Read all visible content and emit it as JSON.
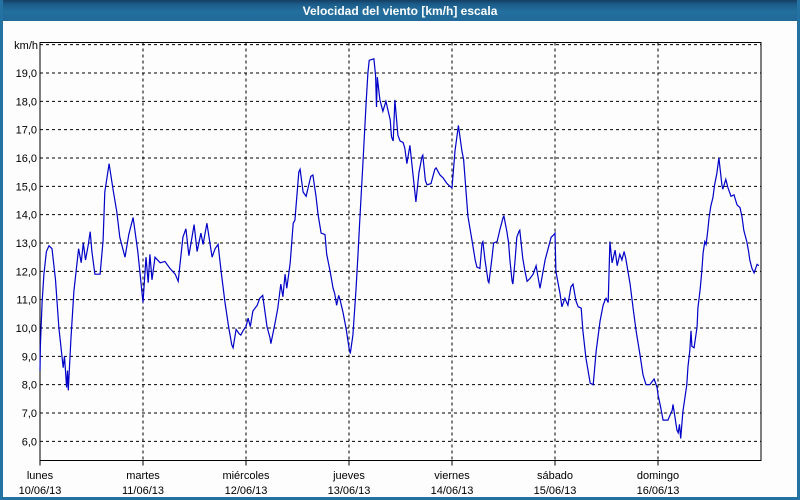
{
  "window": {
    "title": "Velocidad del viento [km/h] escala"
  },
  "colors": {
    "titlebar": "#236f9e",
    "titlebar_top": "#143f61",
    "window_border": "#2472a2",
    "window_bg": "#fcfdfc",
    "plot_bg": "#ffffff",
    "grid": "#000000",
    "axis": "#000000",
    "line": "#0000c8",
    "title_text": "#ffffff",
    "label_text": "#000000"
  },
  "axes": {
    "y_unit_label": "km/h",
    "y_ticks": [
      "19,0",
      "18,0",
      "17,0",
      "16,0",
      "15,0",
      "14,0",
      "13,0",
      "12,0",
      "11,0",
      "10,0",
      "9,0",
      "8,0",
      "7,0",
      "6,0"
    ],
    "y_tick_values": [
      19,
      18,
      17,
      16,
      15,
      14,
      13,
      12,
      11,
      10,
      9,
      8,
      7,
      6
    ],
    "x_days": [
      {
        "name": "lunes",
        "date": "10/06/13"
      },
      {
        "name": "martes",
        "date": "11/06/13"
      },
      {
        "name": "miércoles",
        "date": "12/06/13"
      },
      {
        "name": "jueves",
        "date": "13/06/13"
      },
      {
        "name": "viernes",
        "date": "14/06/13"
      },
      {
        "name": "sábado",
        "date": "15/06/13"
      },
      {
        "name": "domingo",
        "date": "16/06/13"
      }
    ]
  },
  "chart_data": {
    "type": "line",
    "title": "Velocidad del viento [km/h] escala",
    "ylabel": "km/h",
    "ylim": [
      5.3,
      20.0
    ],
    "xlim_hours": [
      0,
      168
    ],
    "x_unit": "hours from lunes 10/06/13 00:00",
    "grid": true,
    "legend": false,
    "day_boundaries_hours": [
      0,
      24,
      48,
      72,
      96,
      120,
      144
    ],
    "series": [
      {
        "name": "Velocidad del viento [km/h]",
        "color": "#0000c8",
        "points": [
          [
            0,
            8.5
          ],
          [
            0.1,
            9.4
          ],
          [
            0.5,
            10.9
          ],
          [
            0.9,
            11.9
          ],
          [
            1.5,
            12.7
          ],
          [
            2.1,
            12.9
          ],
          [
            2.8,
            12.8
          ],
          [
            3.6,
            11.7
          ],
          [
            4.4,
            10.0
          ],
          [
            5.4,
            8.6
          ],
          [
            5.7,
            9.0
          ],
          [
            6.2,
            7.9
          ],
          [
            6.4,
            8.5
          ],
          [
            6.6,
            7.8
          ],
          [
            7.2,
            9.6
          ],
          [
            7.9,
            11.3
          ],
          [
            8.4,
            12.0
          ],
          [
            9.0,
            12.8
          ],
          [
            9.6,
            12.3
          ],
          [
            10.1,
            13.0
          ],
          [
            10.6,
            12.4
          ],
          [
            11.2,
            12.9
          ],
          [
            11.7,
            13.4
          ],
          [
            12.1,
            12.7
          ],
          [
            12.8,
            11.9
          ],
          [
            14.0,
            11.9
          ],
          [
            14.7,
            13.1
          ],
          [
            15.1,
            14.8
          ],
          [
            16.1,
            15.8
          ],
          [
            17.0,
            14.9
          ],
          [
            17.9,
            14.1
          ],
          [
            18.6,
            13.2
          ],
          [
            19.8,
            12.5
          ],
          [
            20.7,
            13.3
          ],
          [
            21.7,
            13.9
          ],
          [
            22.8,
            12.7
          ],
          [
            24.0,
            10.9
          ],
          [
            24.7,
            12.5
          ],
          [
            25.2,
            11.6
          ],
          [
            25.6,
            12.6
          ],
          [
            26.1,
            11.7
          ],
          [
            26.8,
            12.5
          ],
          [
            28.0,
            12.3
          ],
          [
            29.1,
            12.35
          ],
          [
            30.3,
            12.1
          ],
          [
            31.5,
            11.9
          ],
          [
            32.2,
            11.65
          ],
          [
            33.3,
            13.2
          ],
          [
            34.0,
            13.5
          ],
          [
            34.7,
            12.55
          ],
          [
            35.9,
            13.65
          ],
          [
            36.6,
            12.7
          ],
          [
            37.5,
            13.35
          ],
          [
            38.0,
            12.95
          ],
          [
            38.9,
            13.7
          ],
          [
            40.1,
            12.5
          ],
          [
            40.8,
            12.8
          ],
          [
            41.5,
            12.95
          ],
          [
            42.2,
            12.0
          ],
          [
            43.1,
            10.9
          ],
          [
            44.0,
            10.0
          ],
          [
            44.7,
            9.4
          ],
          [
            45.0,
            9.3
          ],
          [
            45.7,
            9.95
          ],
          [
            46.4,
            9.8
          ],
          [
            46.8,
            9.75
          ],
          [
            47.3,
            9.9
          ],
          [
            48.0,
            10.05
          ],
          [
            48.5,
            10.35
          ],
          [
            49.0,
            10.05
          ],
          [
            49.6,
            10.6
          ],
          [
            50.6,
            10.8
          ],
          [
            51.2,
            11.05
          ],
          [
            51.9,
            11.15
          ],
          [
            52.9,
            10.05
          ],
          [
            53.6,
            9.65
          ],
          [
            53.8,
            9.45
          ],
          [
            54.8,
            10.2
          ],
          [
            55.4,
            10.7
          ],
          [
            56.1,
            11.55
          ],
          [
            56.6,
            11.1
          ],
          [
            57.1,
            11.9
          ],
          [
            57.5,
            11.4
          ],
          [
            58.3,
            12.3
          ],
          [
            59.0,
            13.7
          ],
          [
            59.4,
            13.8
          ],
          [
            60.3,
            15.5
          ],
          [
            60.6,
            15.6
          ],
          [
            61.3,
            14.8
          ],
          [
            62.0,
            14.65
          ],
          [
            63.1,
            15.35
          ],
          [
            63.6,
            15.4
          ],
          [
            64.3,
            14.65
          ],
          [
            64.8,
            14.0
          ],
          [
            65.5,
            13.35
          ],
          [
            66.4,
            13.3
          ],
          [
            66.8,
            12.6
          ],
          [
            67.6,
            12.0
          ],
          [
            68.3,
            11.4
          ],
          [
            68.7,
            11.2
          ],
          [
            69.1,
            10.8
          ],
          [
            69.6,
            11.15
          ],
          [
            70.0,
            10.95
          ],
          [
            70.6,
            10.55
          ],
          [
            71.3,
            10.0
          ],
          [
            72.0,
            9.3
          ],
          [
            72.3,
            9.1
          ],
          [
            72.9,
            9.75
          ],
          [
            73.6,
            11.3
          ],
          [
            74.1,
            12.6
          ],
          [
            74.5,
            13.75
          ],
          [
            75.3,
            16.0
          ],
          [
            76.0,
            18.0
          ],
          [
            76.4,
            19.0
          ],
          [
            76.7,
            19.45
          ],
          [
            77.8,
            19.5
          ],
          [
            78.2,
            18.9
          ],
          [
            78.4,
            17.8
          ],
          [
            78.6,
            18.85
          ],
          [
            79.2,
            18.05
          ],
          [
            79.9,
            17.65
          ],
          [
            80.6,
            18.0
          ],
          [
            81.6,
            17.35
          ],
          [
            81.9,
            16.75
          ],
          [
            82.3,
            16.6
          ],
          [
            82.7,
            18.05
          ],
          [
            83.4,
            16.8
          ],
          [
            83.9,
            16.6
          ],
          [
            84.6,
            16.55
          ],
          [
            85.0,
            16.35
          ],
          [
            85.5,
            15.8
          ],
          [
            86.2,
            16.45
          ],
          [
            87.6,
            14.45
          ],
          [
            88.3,
            15.5
          ],
          [
            89.0,
            16.05
          ],
          [
            89.2,
            16.1
          ],
          [
            89.8,
            15.2
          ],
          [
            90.2,
            15.05
          ],
          [
            91.1,
            15.1
          ],
          [
            92.0,
            15.6
          ],
          [
            92.3,
            15.65
          ],
          [
            93.2,
            15.4
          ],
          [
            93.9,
            15.3
          ],
          [
            94.8,
            15.1
          ],
          [
            95.5,
            15.0
          ],
          [
            96.0,
            14.95
          ],
          [
            96.7,
            16.25
          ],
          [
            97.2,
            16.8
          ],
          [
            97.5,
            17.15
          ],
          [
            98.3,
            16.25
          ],
          [
            98.7,
            15.95
          ],
          [
            99.7,
            13.95
          ],
          [
            100.7,
            13.05
          ],
          [
            101.4,
            12.4
          ],
          [
            101.8,
            12.15
          ],
          [
            102.5,
            12.1
          ],
          [
            103.0,
            13.0
          ],
          [
            103.2,
            13.05
          ],
          [
            103.7,
            12.4
          ],
          [
            104.4,
            11.65
          ],
          [
            104.6,
            11.6
          ],
          [
            105.3,
            12.45
          ],
          [
            105.7,
            13.0
          ],
          [
            106.5,
            13.05
          ],
          [
            107.2,
            13.5
          ],
          [
            107.9,
            13.9
          ],
          [
            108.1,
            13.95
          ],
          [
            108.8,
            13.4
          ],
          [
            109.2,
            13.0
          ],
          [
            109.5,
            12.4
          ],
          [
            110.0,
            11.65
          ],
          [
            110.2,
            11.55
          ],
          [
            110.7,
            12.4
          ],
          [
            111.1,
            13.2
          ],
          [
            111.6,
            13.4
          ],
          [
            111.8,
            13.45
          ],
          [
            112.5,
            12.45
          ],
          [
            113.0,
            12.0
          ],
          [
            113.5,
            11.65
          ],
          [
            114.2,
            11.75
          ],
          [
            114.9,
            11.9
          ],
          [
            115.6,
            12.2
          ],
          [
            116.5,
            11.4
          ],
          [
            117.7,
            12.4
          ],
          [
            118.4,
            12.8
          ],
          [
            119.1,
            13.2
          ],
          [
            119.8,
            13.3
          ],
          [
            120.0,
            13.35
          ],
          [
            120.2,
            12.0
          ],
          [
            120.7,
            11.6
          ],
          [
            121.2,
            11.2
          ],
          [
            121.6,
            10.75
          ],
          [
            122.3,
            11.05
          ],
          [
            123.0,
            10.8
          ],
          [
            123.7,
            11.45
          ],
          [
            124.2,
            11.55
          ],
          [
            124.9,
            10.95
          ],
          [
            125.4,
            10.75
          ],
          [
            126.1,
            10.7
          ],
          [
            126.5,
            9.9
          ],
          [
            127.2,
            8.95
          ],
          [
            128.2,
            8.05
          ],
          [
            128.9,
            8.0
          ],
          [
            129.6,
            9.2
          ],
          [
            130.5,
            10.25
          ],
          [
            131.2,
            10.8
          ],
          [
            131.7,
            11.0
          ],
          [
            131.9,
            11.05
          ],
          [
            132.4,
            10.9
          ],
          [
            132.8,
            13.05
          ],
          [
            133.3,
            12.3
          ],
          [
            134.0,
            12.75
          ],
          [
            134.5,
            12.2
          ],
          [
            135.1,
            12.6
          ],
          [
            135.6,
            12.4
          ],
          [
            136.1,
            12.7
          ],
          [
            136.5,
            12.45
          ],
          [
            137.5,
            11.55
          ],
          [
            138.2,
            10.7
          ],
          [
            138.9,
            9.9
          ],
          [
            139.8,
            9.05
          ],
          [
            140.5,
            8.35
          ],
          [
            141.2,
            8.0
          ],
          [
            142.1,
            8.0
          ],
          [
            143.1,
            8.2
          ],
          [
            143.8,
            7.9
          ],
          [
            144.0,
            7.65
          ],
          [
            144.5,
            7.3
          ],
          [
            145.2,
            6.75
          ],
          [
            146.3,
            6.75
          ],
          [
            147.3,
            7.1
          ],
          [
            147.5,
            7.3
          ],
          [
            148.0,
            6.8
          ],
          [
            148.4,
            6.4
          ],
          [
            148.7,
            6.3
          ],
          [
            149.0,
            6.6
          ],
          [
            149.3,
            6.1
          ],
          [
            149.8,
            7.05
          ],
          [
            150.7,
            8.0
          ],
          [
            151.0,
            8.65
          ],
          [
            151.4,
            9.2
          ],
          [
            151.7,
            9.9
          ],
          [
            151.9,
            9.35
          ],
          [
            152.4,
            9.3
          ],
          [
            153.1,
            10.05
          ],
          [
            153.3,
            10.7
          ],
          [
            153.8,
            11.35
          ],
          [
            154.2,
            12.0
          ],
          [
            154.5,
            12.65
          ],
          [
            154.9,
            13.05
          ],
          [
            155.2,
            12.95
          ],
          [
            155.6,
            13.45
          ],
          [
            155.9,
            13.9
          ],
          [
            156.3,
            14.3
          ],
          [
            156.8,
            14.6
          ],
          [
            157.2,
            15.05
          ],
          [
            157.7,
            15.45
          ],
          [
            158.2,
            16.0
          ],
          [
            158.9,
            15.05
          ],
          [
            159.1,
            14.9
          ],
          [
            159.8,
            15.25
          ],
          [
            160.3,
            14.95
          ],
          [
            161.0,
            14.65
          ],
          [
            161.7,
            14.7
          ],
          [
            162.4,
            14.35
          ],
          [
            163.1,
            14.25
          ],
          [
            163.6,
            13.9
          ],
          [
            164.0,
            13.45
          ],
          [
            164.7,
            13.05
          ],
          [
            165.1,
            12.7
          ],
          [
            165.4,
            12.4
          ],
          [
            165.9,
            12.1
          ],
          [
            166.4,
            11.95
          ],
          [
            167.1,
            12.25
          ],
          [
            167.5,
            12.2
          ]
        ]
      }
    ]
  }
}
